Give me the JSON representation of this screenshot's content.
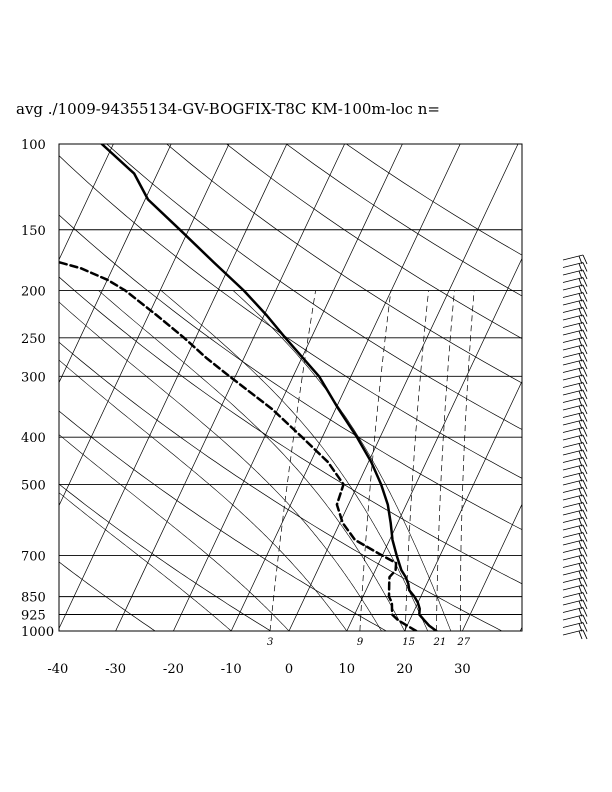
{
  "chart_data": {
    "type": "line",
    "title": "avg ./1009-94355134-GV-BOGFIX-T8C KM-100m-loc n=",
    "xlabel": "",
    "ylabel": "",
    "y_scale": "log-pressure",
    "ylim": [
      1000,
      100
    ],
    "xlim": [
      -40,
      40
    ],
    "pressure_ticks": [
      "100",
      "150",
      "200",
      "250",
      "300",
      "400",
      "500",
      "700",
      "850",
      "925",
      "1000"
    ],
    "temperature_ticks": [
      "-40",
      "-30",
      "-20",
      "-10",
      "0",
      "10",
      "20",
      "30"
    ],
    "mixing_ratio_labels": [
      "3",
      "9",
      "15",
      "21",
      "27"
    ],
    "grid": true,
    "series": [
      {
        "style": "solid",
        "pressure": [
          1000,
          975,
          950,
          925,
          900,
          875,
          850,
          825,
          800,
          775,
          750,
          700,
          650,
          600,
          550,
          500,
          450,
          400,
          350,
          300,
          250,
          225,
          200,
          175,
          150,
          130,
          115,
          100
        ],
        "temperature": [
          25.5,
          23.8,
          22.5,
          21.2,
          20.8,
          20.0,
          18.9,
          17.5,
          16.8,
          15.8,
          14.5,
          12.5,
          10.5,
          8.8,
          6.8,
          4.0,
          0.5,
          -4.0,
          -9.5,
          -15.5,
          -24.5,
          -29.5,
          -35.5,
          -43.0,
          -51.5,
          -59.5,
          -64.0,
          -72.0
        ]
      },
      {
        "style": "dashed",
        "pressure": [
          1000,
          975,
          950,
          925,
          900,
          875,
          850,
          825,
          800,
          775,
          750,
          725,
          700,
          650,
          600,
          550,
          500,
          450,
          400,
          350,
          300,
          275,
          250,
          225,
          200,
          190,
          180,
          170
        ],
        "temperature": [
          22.0,
          20.0,
          18.0,
          16.5,
          16.0,
          15.5,
          14.5,
          14.0,
          13.5,
          13.0,
          13.5,
          13.0,
          10.0,
          4.0,
          0.5,
          -2.0,
          -2.5,
          -7.0,
          -13.5,
          -21.0,
          -31.0,
          -36.5,
          -42.0,
          -48.5,
          -56.0,
          -60.0,
          -65.5,
          -74.0
        ]
      }
    ]
  }
}
